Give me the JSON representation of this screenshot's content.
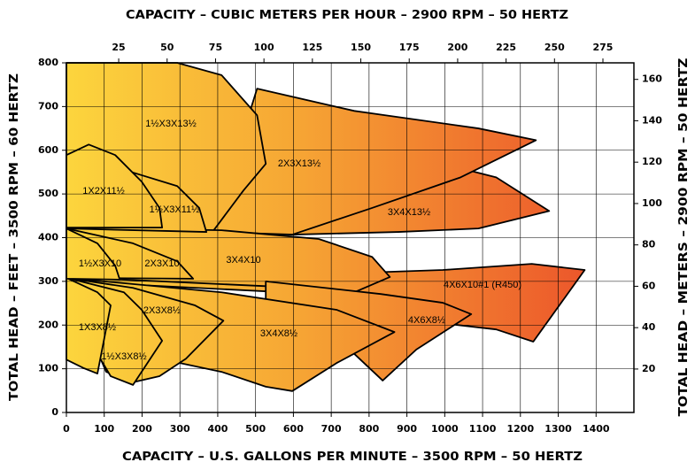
{
  "chart_data": {
    "type": "region",
    "title_top": "CAPACITY – CUBIC METERS PER HOUR – 2900 RPM – 50 HERTZ",
    "title_bottom": "CAPACITY – U.S. GALLONS PER MINUTE – 3500 RPM – 50 HERTZ",
    "title_left": "TOTAL HEAD – FEET – 3500 RPM – 60 HERTZ",
    "title_right": "TOTAL HEAD – METERS – 2900 RPM – 50 HERTZ",
    "xlim": [
      0,
      1500
    ],
    "xticks": [
      0,
      100,
      200,
      300,
      400,
      500,
      600,
      700,
      800,
      900,
      1000,
      1100,
      1200,
      1300,
      1400
    ],
    "ylim": [
      0,
      800
    ],
    "yticks": [
      0,
      100,
      200,
      300,
      400,
      500,
      600,
      700,
      800
    ],
    "x2lim": [
      -2,
      291
    ],
    "x2ticks": [
      25,
      50,
      75,
      100,
      125,
      150,
      175,
      200,
      225,
      250,
      275
    ],
    "y2lim": [
      -1,
      168
    ],
    "y2ticks": [
      20,
      40,
      60,
      80,
      100,
      120,
      140,
      160
    ],
    "grid": true,
    "regions": [
      {
        "label": "3X4X13½",
        "x": [
          597,
          632,
          761,
          995,
          1136,
          1276,
          1089,
          878
        ],
        "y": [
          407,
          579,
          583,
          569,
          538,
          461,
          421,
          413
        ]
      },
      {
        "label": "2X3X13½",
        "x": [
          386,
          504,
          761,
          1089,
          1241,
          1042,
          808,
          597
        ],
        "y": [
          413,
          741,
          690,
          650,
          623,
          538,
          468,
          407
        ]
      },
      {
        "label": "1½X3X13½",
        "x": [
          0,
          293,
          410,
          504,
          527,
          468,
          386,
          0
        ],
        "y": [
          800,
          800,
          772,
          680,
          569,
          508,
          413,
          421
        ]
      },
      {
        "label": "4X6X10#1 (R450)",
        "x": [
          0,
          527,
          995,
          1230,
          1370,
          1234,
          1136,
          995,
          808,
          0
        ],
        "y": [
          310,
          312,
          326,
          340,
          326,
          162,
          190,
          204,
          265,
          300
        ]
      },
      {
        "label": "3X4X10",
        "x": [
          0,
          410,
          667,
          808,
          855,
          761,
          527,
          0
        ],
        "y": [
          423,
          417,
          397,
          356,
          310,
          275,
          289,
          310
        ]
      },
      {
        "label": "4X6X8½",
        "x": [
          527,
          831,
          995,
          1070,
          925,
          836,
          761,
          667,
          527
        ],
        "y": [
          300,
          271,
          251,
          225,
          144,
          73,
          134,
          190,
          243
        ]
      },
      {
        "label": "3X4X8½",
        "x": [
          0,
          410,
          714,
          867,
          714,
          597,
          527,
          410,
          246
        ],
        "y": [
          308,
          275,
          235,
          184,
          113,
          49,
          59,
          93,
          123
        ]
      },
      {
        "label": "2X3X8½",
        "x": [
          0,
          176,
          340,
          415,
          316,
          246,
          176,
          105
        ],
        "y": [
          308,
          285,
          245,
          210,
          123,
          83,
          69,
          93
        ]
      },
      {
        "label": "1½X3X8½",
        "x": [
          0,
          152,
          199,
          253,
          176,
          117,
          82
        ],
        "y": [
          308,
          275,
          235,
          164,
          63,
          83,
          134
        ]
      },
      {
        "label": "1X3X8½",
        "x": [
          0,
          82,
          117,
          82,
          47,
          0
        ],
        "y": [
          308,
          275,
          245,
          89,
          101,
          121
        ]
      },
      {
        "label": "1½X3X11½",
        "x": [
          0,
          176,
          293,
          351,
          370,
          0
        ],
        "y": [
          538,
          549,
          518,
          468,
          413,
          421
        ]
      },
      {
        "label": "1X2X11½",
        "x": [
          0,
          59,
          129,
          199,
          246,
          253,
          0
        ],
        "y": [
          589,
          613,
          589,
          528,
          468,
          423,
          423
        ]
      },
      {
        "label": "2X3X10",
        "x": [
          0,
          176,
          293,
          335,
          0
        ],
        "y": [
          421,
          387,
          346,
          306,
          308
        ]
      },
      {
        "label": "1½X3X10",
        "x": [
          0,
          82,
          129,
          141,
          0
        ],
        "y": [
          421,
          387,
          336,
          304,
          306
        ]
      }
    ]
  }
}
